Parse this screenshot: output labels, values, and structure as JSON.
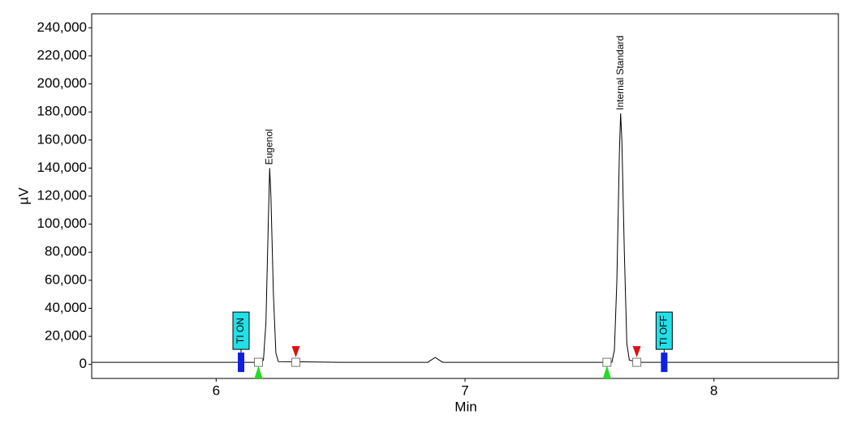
{
  "chart_data": {
    "type": "line",
    "x_label": "Min",
    "y_label": "µV",
    "x": [
      5.5,
      6.0,
      6.18,
      6.19,
      6.2,
      6.21,
      6.215,
      6.22,
      6.23,
      6.24,
      6.25,
      6.5,
      6.85,
      6.88,
      6.91,
      7.5,
      7.59,
      7.6,
      7.61,
      7.62,
      7.625,
      7.63,
      7.64,
      7.65,
      7.66,
      7.7,
      8.5
    ],
    "values": [
      1500,
      1500,
      1500,
      3000,
      30000,
      105000,
      140000,
      120000,
      50000,
      8000,
      2000,
      1500,
      1500,
      5000,
      1500,
      1500,
      1500,
      10000,
      60000,
      150000,
      179000,
      160000,
      80000,
      15000,
      3000,
      1500,
      1500
    ],
    "color": "#000000",
    "xlim": [
      5.5,
      8.5
    ],
    "xticks": [
      6,
      7,
      8
    ],
    "ylim": [
      -10000,
      250000
    ],
    "yticks": [
      0,
      {
        "value": 20000,
        "label": "20,000"
      },
      {
        "value": 40000,
        "label": "40,000"
      },
      {
        "value": 60000,
        "label": "60,000"
      },
      {
        "value": 80000,
        "label": "80,000"
      },
      {
        "value": 100000,
        "label": "100,000"
      },
      {
        "value": 120000,
        "label": "120,000"
      },
      {
        "value": 140000,
        "label": "140,000"
      },
      {
        "value": 160000,
        "label": "160,000"
      },
      {
        "value": 180000,
        "label": "180,000"
      },
      {
        "value": 200000,
        "label": "200,000"
      },
      {
        "value": 220000,
        "label": "220,000"
      },
      {
        "value": 240000,
        "label": "240,000"
      }
    ],
    "grid": false,
    "peaks": [
      {
        "label": "Eugenol",
        "start": 6.17,
        "end": 6.32
      },
      {
        "label": "Internal Standard",
        "start": 7.57,
        "end": 7.69
      }
    ],
    "events": [
      {
        "label": "TI ON",
        "x": 6.1
      },
      {
        "label": "TI OFF",
        "x": 7.8
      }
    ]
  }
}
